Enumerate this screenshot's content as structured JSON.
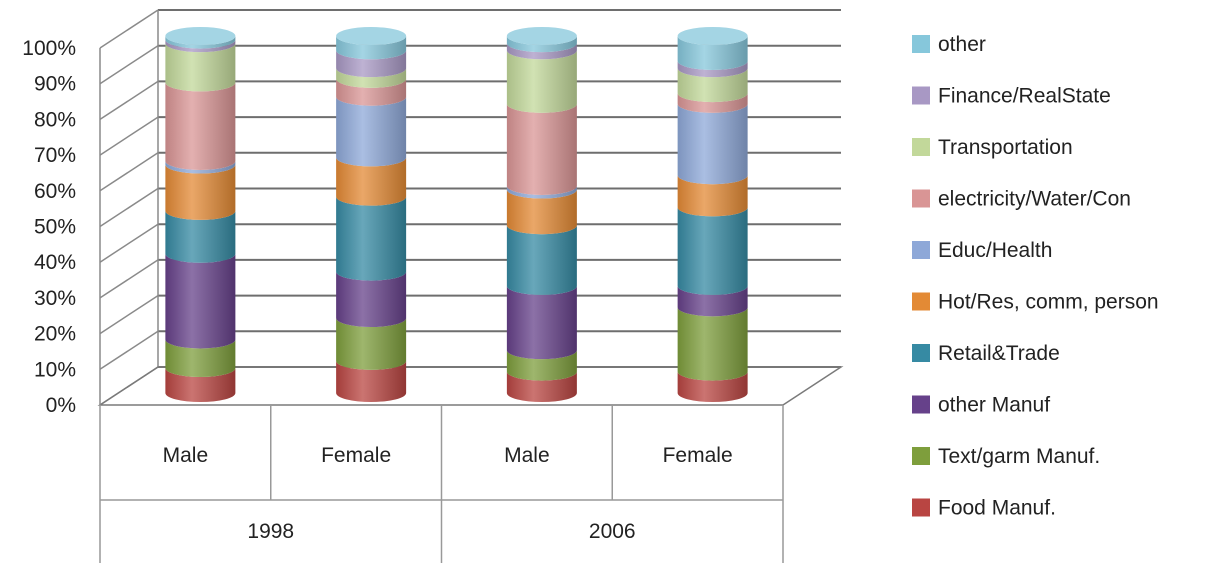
{
  "chart_data": {
    "type": "bar",
    "stacked": true,
    "percent_stacked": true,
    "three_d": true,
    "title": "",
    "xlabel": "",
    "ylabel": "",
    "ylim": [
      0,
      100
    ],
    "y_ticks": [
      "0%",
      "10%",
      "20%",
      "30%",
      "40%",
      "50%",
      "60%",
      "70%",
      "80%",
      "90%",
      "100%"
    ],
    "grid": true,
    "legend_position": "right",
    "categories": [
      "Male",
      "Female",
      "Male",
      "Female"
    ],
    "groups": [
      {
        "label": "1998",
        "categories": [
          "Male",
          "Female"
        ]
      },
      {
        "label": "2006",
        "categories": [
          "Male",
          "Female"
        ]
      }
    ],
    "series": [
      {
        "name": "Food Manuf.",
        "color": "#b94542",
        "values": [
          7,
          9,
          6,
          6
        ]
      },
      {
        "name": "Text/garm Manuf.",
        "color": "#7e9e3c",
        "values": [
          8,
          12,
          6,
          18
        ]
      },
      {
        "name": "other Manuf",
        "color": "#66418a",
        "values": [
          24,
          13,
          18,
          6
        ]
      },
      {
        "name": "Retail&Trade",
        "color": "#368aa3",
        "values": [
          12,
          21,
          17,
          22
        ]
      },
      {
        "name": "Hot/Res, comm,  person",
        "color": "#e38a35",
        "values": [
          13,
          11,
          10,
          9
        ]
      },
      {
        "name": "Educ/Health",
        "color": "#8ea8d8",
        "values": [
          1,
          17,
          1,
          20
        ]
      },
      {
        "name": "electricity/Water/Con",
        "color": "#d99595",
        "values": [
          22,
          5,
          23,
          3
        ]
      },
      {
        "name": "Transportation",
        "color": "#c2d89a",
        "values": [
          11,
          3,
          15,
          7
        ]
      },
      {
        "name": "Finance/RealState",
        "color": "#a898c4",
        "values": [
          1,
          5,
          2,
          2
        ]
      },
      {
        "name": "other",
        "color": "#86c7db",
        "values": [
          1,
          4,
          2,
          7
        ]
      }
    ]
  }
}
